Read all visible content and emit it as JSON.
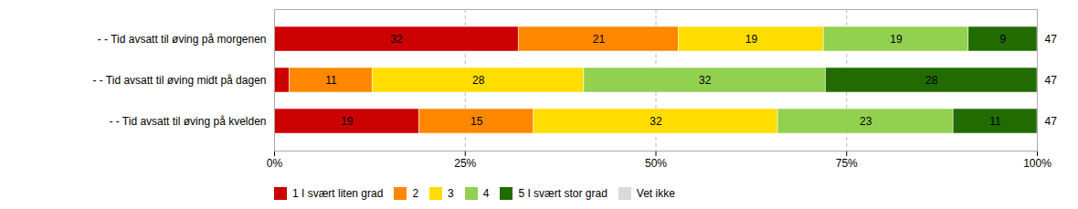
{
  "chart_data": {
    "type": "bar",
    "orientation": "horizontal",
    "stacked": true,
    "categories": [
      "- - Tid avsatt til øving på morgenen",
      "- - Tid avsatt til øving midt på dagen",
      "- - Tid avsatt til øving på kvelden"
    ],
    "series": [
      {
        "name": "1 I svært liten grad",
        "color": "#cc0000",
        "values": [
          32,
          1.9801980198019802,
          19
        ],
        "value_labels": [
          "32",
          null,
          "19"
        ]
      },
      {
        "name": "2",
        "color": "#ff8800",
        "values": [
          21,
          10.891089108910892,
          15
        ],
        "value_labels": [
          "21",
          "11",
          "15"
        ]
      },
      {
        "name": "3",
        "color": "#ffdd00",
        "values": [
          19,
          27.722772277227723,
          32
        ],
        "value_labels": [
          "19",
          "28",
          "32"
        ]
      },
      {
        "name": "4",
        "color": "#92d050",
        "values": [
          19,
          31.683168316831683,
          23
        ],
        "value_labels": [
          "19",
          "32",
          "23"
        ]
      },
      {
        "name": "5 I svært stor grad",
        "color": "#226b00",
        "values": [
          9,
          27.722772277227723,
          11
        ],
        "value_labels": [
          "9",
          "28",
          "11"
        ]
      },
      {
        "name": "Vet ikke",
        "color": "#d9d9d9",
        "values": [
          0,
          0,
          0
        ],
        "value_labels": [
          null,
          null,
          null
        ]
      }
    ],
    "n_values": [
      47,
      47,
      47
    ],
    "xlim": [
      0,
      100
    ],
    "xticks": [
      {
        "value": 0,
        "label": "0%"
      },
      {
        "value": 25,
        "label": "25%"
      },
      {
        "value": 50,
        "label": "50%"
      },
      {
        "value": 75,
        "label": "75%"
      },
      {
        "value": 100,
        "label": "100%"
      }
    ],
    "grid": true,
    "legend": "bottom"
  }
}
